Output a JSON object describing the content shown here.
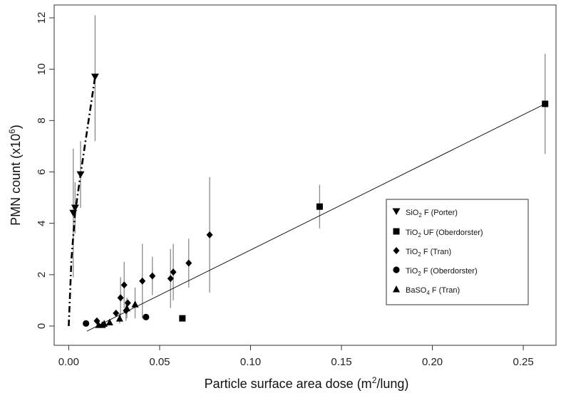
{
  "chart_data": {
    "type": "scatter",
    "title": "",
    "xlabel": {
      "prefix": "Particle surface area dose (m",
      "sup": "2",
      "suffix": "/lung)"
    },
    "ylabel": {
      "prefix": "PMN count (x10",
      "sup": "6",
      "suffix": ")"
    },
    "xlim": [
      -0.008,
      0.268
    ],
    "ylim": [
      -0.75,
      12.5
    ],
    "xticks": [
      {
        "value": 0.0,
        "label": "0.00"
      },
      {
        "value": 0.05,
        "label": "0.05"
      },
      {
        "value": 0.1,
        "label": "0.10"
      },
      {
        "value": 0.15,
        "label": "0.15"
      },
      {
        "value": 0.2,
        "label": "0.20"
      },
      {
        "value": 0.25,
        "label": "0.25"
      }
    ],
    "yticks": [
      {
        "value": 0,
        "label": "0"
      },
      {
        "value": 2,
        "label": "2"
      },
      {
        "value": 4,
        "label": "4"
      },
      {
        "value": 6,
        "label": "6"
      },
      {
        "value": 8,
        "label": "8"
      },
      {
        "value": 10,
        "label": "10"
      },
      {
        "value": 12,
        "label": "12"
      }
    ],
    "legend_position": "right",
    "series": [
      {
        "legend": {
          "prefix": "SiO",
          "sub": "2",
          "suffix": " F (Porter)"
        },
        "marker": "triangle-down",
        "points": [
          {
            "x": 0.0025,
            "y": 4.4,
            "lo": 1.9,
            "hi": 6.9
          },
          {
            "x": 0.0035,
            "y": 4.6,
            "lo": 3.6,
            "hi": 5.6
          },
          {
            "x": 0.0065,
            "y": 5.9,
            "lo": 4.6,
            "hi": 7.2
          },
          {
            "x": 0.0145,
            "y": 9.7,
            "lo": 7.2,
            "hi": 12.1
          }
        ]
      },
      {
        "legend": {
          "prefix": "TiO",
          "sub": "2",
          "suffix": " UF (Oberdorster)"
        },
        "marker": "square",
        "points": [
          {
            "x": 0.0625,
            "y": 0.3
          },
          {
            "x": 0.138,
            "y": 4.65,
            "lo": 3.8,
            "hi": 5.5
          },
          {
            "x": 0.262,
            "y": 8.65,
            "lo": 6.7,
            "hi": 10.6
          }
        ]
      },
      {
        "legend": {
          "prefix": "TiO",
          "sub": "2",
          "suffix": " F (Tran)"
        },
        "marker": "diamond",
        "points": [
          {
            "x": 0.0155,
            "y": 0.2
          },
          {
            "x": 0.026,
            "y": 0.5
          },
          {
            "x": 0.0285,
            "y": 1.1,
            "lo": 0.3,
            "hi": 1.9
          },
          {
            "x": 0.0305,
            "y": 1.6,
            "lo": 0.7,
            "hi": 2.5
          },
          {
            "x": 0.0315,
            "y": 0.6,
            "lo": 0.2,
            "hi": 1.0
          },
          {
            "x": 0.0325,
            "y": 0.9
          },
          {
            "x": 0.0405,
            "y": 1.75,
            "lo": 0.3,
            "hi": 3.2
          },
          {
            "x": 0.046,
            "y": 1.95,
            "lo": 1.2,
            "hi": 2.7
          },
          {
            "x": 0.056,
            "y": 1.85,
            "lo": 0.7,
            "hi": 3.0
          },
          {
            "x": 0.0575,
            "y": 2.1,
            "lo": 1.0,
            "hi": 3.2
          },
          {
            "x": 0.066,
            "y": 2.45,
            "lo": 1.5,
            "hi": 3.4
          },
          {
            "x": 0.0775,
            "y": 3.55,
            "lo": 1.3,
            "hi": 5.8
          }
        ]
      },
      {
        "legend": {
          "prefix": "TiO",
          "sub": "2",
          "suffix": " F (Oberdorster)"
        },
        "marker": "circle",
        "points": [
          {
            "x": 0.0095,
            "y": 0.1
          },
          {
            "x": 0.0425,
            "y": 0.35
          }
        ]
      },
      {
        "legend": {
          "prefix": "BaSO",
          "sub": "4",
          "suffix": " F (Tran)"
        },
        "marker": "triangle-up",
        "points": [
          {
            "x": 0.0165,
            "y": 0.05
          },
          {
            "x": 0.0185,
            "y": 0.05
          },
          {
            "x": 0.0195,
            "y": 0.1
          },
          {
            "x": 0.0225,
            "y": 0.15
          },
          {
            "x": 0.028,
            "y": 0.3,
            "lo": 0.1,
            "hi": 0.5
          },
          {
            "x": 0.032,
            "y": 0.7,
            "lo": 0.3,
            "hi": 1.1
          },
          {
            "x": 0.0365,
            "y": 0.85,
            "lo": 0.3,
            "hi": 1.5
          }
        ]
      }
    ],
    "fit_lines": [
      {
        "style": "solid",
        "points": [
          [
            0.01,
            -0.2
          ],
          [
            0.262,
            8.65
          ]
        ]
      },
      {
        "style": "dashdot",
        "points": [
          [
            0.0,
            0.0
          ],
          [
            0.0015,
            2.6
          ],
          [
            0.0035,
            4.4
          ],
          [
            0.0065,
            5.9
          ],
          [
            0.0145,
            9.7
          ]
        ]
      }
    ]
  }
}
